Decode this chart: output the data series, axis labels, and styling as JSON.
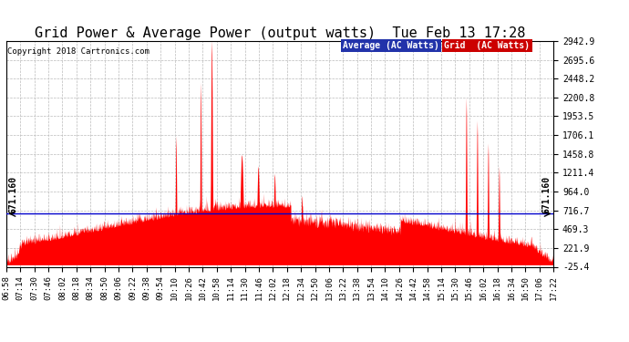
{
  "title": "Grid Power & Average Power (output watts)  Tue Feb 13 17:28",
  "copyright": "Copyright 2018 Cartronics.com",
  "ylim": [
    -25.4,
    2942.9
  ],
  "yticks": [
    2942.9,
    2695.6,
    2448.2,
    2200.8,
    1953.5,
    1706.1,
    1458.8,
    1211.4,
    964.0,
    716.7,
    469.3,
    221.9,
    -25.4
  ],
  "average_line": 671.16,
  "average_label": "671.160",
  "legend_avg_label": "Average (AC Watts)",
  "legend_grid_label": "Grid  (AC Watts)",
  "avg_color": "#0000cc",
  "grid_color": "#ff0000",
  "bg_color": "#ffffff",
  "plot_bg": "#ffffff",
  "grid_line_color": "#bbbbbb",
  "title_fontsize": 11,
  "tick_fontsize": 7.5,
  "xtick_labels": [
    "06:58",
    "07:14",
    "07:30",
    "07:46",
    "08:02",
    "08:18",
    "08:34",
    "08:50",
    "09:06",
    "09:22",
    "09:38",
    "09:54",
    "10:10",
    "10:26",
    "10:42",
    "10:58",
    "11:14",
    "11:30",
    "11:46",
    "12:02",
    "12:18",
    "12:34",
    "12:50",
    "13:06",
    "13:22",
    "13:38",
    "13:54",
    "14:10",
    "14:26",
    "14:42",
    "14:58",
    "15:14",
    "15:30",
    "15:46",
    "16:02",
    "16:18",
    "16:34",
    "16:50",
    "17:06",
    "17:22"
  ]
}
